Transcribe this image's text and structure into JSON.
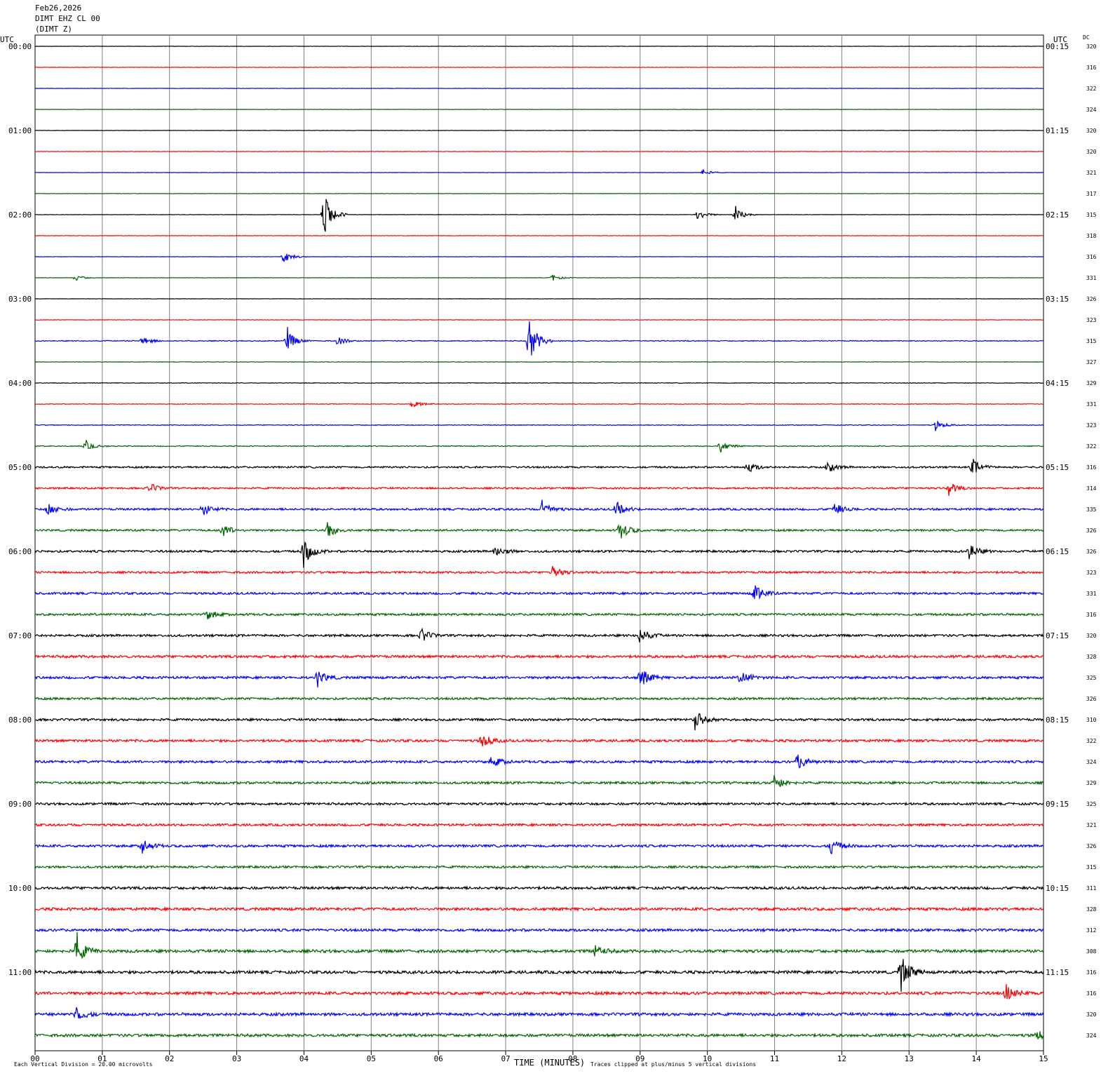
{
  "header": {
    "date": "Feb26,2026",
    "station": "DIMT EHZ CL 00",
    "component": "(DIMT Z)"
  },
  "axes": {
    "left_unit": "UTC",
    "right_unit": "UTC",
    "dc_label": "DC",
    "x_label": "TIME (MINUTES)",
    "x_ticks": [
      "00",
      "01",
      "02",
      "03",
      "04",
      "05",
      "06",
      "07",
      "08",
      "09",
      "10",
      "11",
      "12",
      "13",
      "14",
      "15"
    ]
  },
  "footer": {
    "scale_note": "Each Vertical Division =   20.00 microvolts",
    "clip_note": "Traces clipped at plus/minus 5 vertical divisions"
  },
  "colors": {
    "cycle": [
      "#000000",
      "#ff0000",
      "#0000ff",
      "#006400"
    ],
    "grid": "#808080"
  },
  "chart_data": {
    "type": "line",
    "title": "",
    "x_range_minutes": [
      0,
      15
    ],
    "rows_per_hour": 4,
    "left_hour_labels": [
      "00:00",
      "01:00",
      "02:00",
      "03:00",
      "04:00",
      "05:00",
      "06:00",
      "07:00",
      "08:00",
      "09:00",
      "10:00",
      "11:00"
    ],
    "right_hour_labels": [
      "00:15",
      "01:15",
      "02:15",
      "03:15",
      "04:15",
      "05:15",
      "06:15",
      "07:15",
      "08:15",
      "09:15",
      "10:15",
      "11:15"
    ],
    "dc_values": [
      "320",
      "316",
      "322",
      "324",
      "320",
      "320",
      "321",
      "317",
      "315",
      "318",
      "316",
      "331",
      "326",
      "323",
      "315",
      "327",
      "329",
      "331",
      "323",
      "322",
      "316",
      "314",
      "335",
      "326",
      "326",
      "323",
      "331",
      "316",
      "320",
      "328",
      "325",
      "326",
      "310",
      "322",
      "324",
      "329",
      "325",
      "321",
      "326",
      "315",
      "311",
      "328",
      "312",
      "308",
      "316",
      "316",
      "320",
      "324"
    ],
    "noise_level": [
      0.25,
      0.25,
      0.25,
      0.25,
      0.25,
      0.25,
      0.25,
      0.25,
      0.25,
      0.25,
      0.25,
      0.25,
      0.25,
      0.3,
      0.6,
      0.3,
      0.4,
      0.4,
      0.5,
      0.6,
      1.2,
      1.2,
      1.4,
      1.3,
      1.5,
      1.4,
      1.5,
      1.5,
      1.6,
      1.8,
      1.7,
      1.5,
      1.6,
      1.7,
      1.7,
      1.6,
      1.6,
      1.6,
      1.7,
      1.5,
      1.8,
      1.9,
      1.8,
      2.0,
      2.0,
      2.0,
      2.0,
      1.9
    ],
    "events": [
      {
        "row": 6,
        "minute": 9.93,
        "amplitude": 4
      },
      {
        "row": 8,
        "minute": 4.3,
        "amplitude": 30
      },
      {
        "row": 8,
        "minute": 9.85,
        "amplitude": 8
      },
      {
        "row": 8,
        "minute": 10.42,
        "amplitude": 10
      },
      {
        "row": 10,
        "minute": 3.7,
        "amplitude": 8
      },
      {
        "row": 11,
        "minute": 0.6,
        "amplitude": 4
      },
      {
        "row": 11,
        "minute": 7.7,
        "amplitude": 4
      },
      {
        "row": 14,
        "minute": 1.6,
        "amplitude": 6
      },
      {
        "row": 14,
        "minute": 3.75,
        "amplitude": 14
      },
      {
        "row": 14,
        "minute": 4.5,
        "amplitude": 6
      },
      {
        "row": 14,
        "minute": 7.35,
        "amplitude": 30
      },
      {
        "row": 17,
        "minute": 5.6,
        "amplitude": 6
      },
      {
        "row": 18,
        "minute": 13.4,
        "amplitude": 6
      },
      {
        "row": 19,
        "minute": 0.75,
        "amplitude": 6
      },
      {
        "row": 19,
        "minute": 10.2,
        "amplitude": 7
      },
      {
        "row": 20,
        "minute": 10.6,
        "amplitude": 8
      },
      {
        "row": 20,
        "minute": 11.8,
        "amplitude": 7
      },
      {
        "row": 20,
        "minute": 13.95,
        "amplitude": 10
      },
      {
        "row": 21,
        "minute": 1.7,
        "amplitude": 7
      },
      {
        "row": 21,
        "minute": 13.6,
        "amplitude": 8
      },
      {
        "row": 22,
        "minute": 0.2,
        "amplitude": 8
      },
      {
        "row": 22,
        "minute": 2.5,
        "amplitude": 8
      },
      {
        "row": 22,
        "minute": 7.55,
        "amplitude": 12
      },
      {
        "row": 22,
        "minute": 8.65,
        "amplitude": 10
      },
      {
        "row": 22,
        "minute": 11.9,
        "amplitude": 8
      },
      {
        "row": 23,
        "minute": 2.8,
        "amplitude": 8
      },
      {
        "row": 23,
        "minute": 4.35,
        "amplitude": 10
      },
      {
        "row": 23,
        "minute": 8.7,
        "amplitude": 14
      },
      {
        "row": 24,
        "minute": 4.0,
        "amplitude": 18
      },
      {
        "row": 24,
        "minute": 6.85,
        "amplitude": 8
      },
      {
        "row": 24,
        "minute": 13.9,
        "amplitude": 10
      },
      {
        "row": 25,
        "minute": 7.7,
        "amplitude": 8
      },
      {
        "row": 26,
        "minute": 10.7,
        "amplitude": 14
      },
      {
        "row": 27,
        "minute": 2.55,
        "amplitude": 7
      },
      {
        "row": 28,
        "minute": 5.75,
        "amplitude": 8
      },
      {
        "row": 28,
        "minute": 9.0,
        "amplitude": 10
      },
      {
        "row": 30,
        "minute": 4.2,
        "amplitude": 10
      },
      {
        "row": 30,
        "minute": 9.0,
        "amplitude": 14
      },
      {
        "row": 30,
        "minute": 10.5,
        "amplitude": 10
      },
      {
        "row": 32,
        "minute": 9.82,
        "amplitude": 12
      },
      {
        "row": 33,
        "minute": 6.65,
        "amplitude": 10
      },
      {
        "row": 34,
        "minute": 6.8,
        "amplitude": 8
      },
      {
        "row": 34,
        "minute": 11.35,
        "amplitude": 10
      },
      {
        "row": 35,
        "minute": 11.0,
        "amplitude": 10
      },
      {
        "row": 38,
        "minute": 1.6,
        "amplitude": 8
      },
      {
        "row": 38,
        "minute": 11.85,
        "amplitude": 10
      },
      {
        "row": 43,
        "minute": 0.62,
        "amplitude": 18
      },
      {
        "row": 43,
        "minute": 8.3,
        "amplitude": 10
      },
      {
        "row": 44,
        "minute": 12.88,
        "amplitude": 24
      },
      {
        "row": 45,
        "minute": 14.45,
        "amplitude": 10
      },
      {
        "row": 46,
        "minute": 0.62,
        "amplitude": 9
      },
      {
        "row": 47,
        "minute": 14.9,
        "amplitude": 6
      }
    ]
  }
}
